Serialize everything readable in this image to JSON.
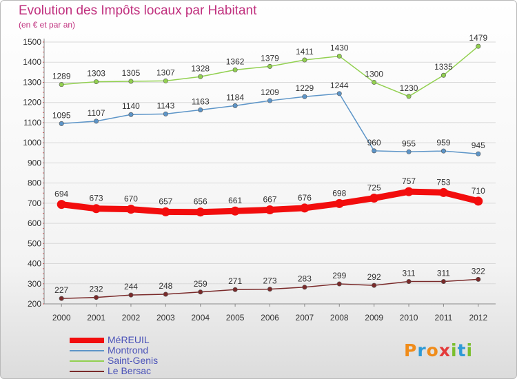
{
  "header": {
    "title": "Evolution des Impôts locaux par Habitant",
    "subtitle": "(en € et par an)"
  },
  "logo": {
    "text": "Proxiti",
    "letter_colors": [
      "#f08c1a",
      "#2e9ad6",
      "#f08c1a",
      "#e43b3b",
      "#7bbf2e",
      "#2e9ad6",
      "#7bbf2e"
    ]
  },
  "chart_data": {
    "type": "line",
    "x": [
      "2000",
      "2001",
      "2002",
      "2003",
      "2004",
      "2005",
      "2006",
      "2007",
      "2008",
      "2009",
      "2010",
      "2011",
      "2012"
    ],
    "ylim": [
      200,
      1500
    ],
    "yticks": [
      "200",
      "300",
      "400",
      "500",
      "600",
      "700",
      "800",
      "900",
      "1000",
      "1100",
      "1200",
      "1300",
      "1400",
      "1500"
    ],
    "grid": "horizontal",
    "legend_position": "bottom-left",
    "series": [
      {
        "name": "MéREUIL",
        "color": "#f20d0d",
        "values": [
          694,
          673,
          670,
          657,
          656,
          661,
          667,
          676,
          698,
          725,
          757,
          753,
          710
        ]
      },
      {
        "name": "Montrond",
        "color": "#5d95c8",
        "values": [
          1095,
          1107,
          1140,
          1143,
          1163,
          1184,
          1209,
          1229,
          1244,
          960,
          955,
          959,
          945
        ]
      },
      {
        "name": "Saint-Genis",
        "color": "#92d050",
        "values": [
          1289,
          1303,
          1305,
          1307,
          1328,
          1362,
          1379,
          1411,
          1430,
          1300,
          1230,
          1335,
          1479
        ]
      },
      {
        "name": "Le Bersac",
        "color": "#7a2a2a",
        "values": [
          227,
          232,
          244,
          248,
          259,
          271,
          273,
          283,
          299,
          292,
          311,
          311,
          322
        ]
      }
    ]
  }
}
